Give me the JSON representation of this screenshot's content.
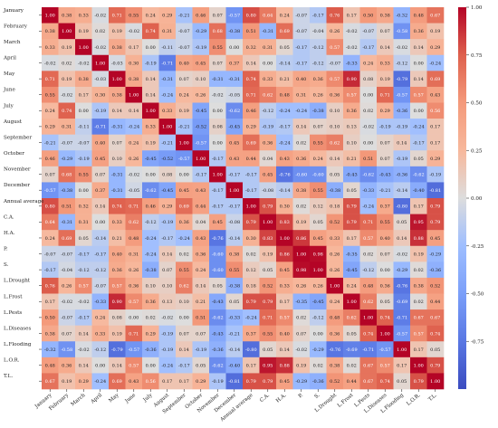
{
  "chart_data": {
    "type": "heatmap",
    "title": "",
    "xlabel": "",
    "ylabel": "",
    "labels": [
      "January",
      "February",
      "March",
      "April",
      "May",
      "June",
      "July",
      "August",
      "September",
      "October",
      "November",
      "December",
      "Annual average",
      "C.A.",
      "H.A.",
      "P.",
      "S.",
      "L.Drought",
      "L.Frost",
      "L.Pests",
      "L.Diseases",
      "L.Flooding",
      "L.O.R.",
      "T.L."
    ],
    "matrix": [
      [
        1.0,
        0.38,
        0.33,
        -0.02,
        0.71,
        0.55,
        0.24,
        0.29,
        -0.21,
        0.46,
        0.07,
        -0.57,
        0.8,
        0.64,
        0.24,
        -0.07,
        -0.17,
        0.76,
        0.17,
        0.5,
        0.38,
        -0.32,
        0.48,
        0.67
      ],
      [
        0.38,
        1.0,
        0.19,
        0.02,
        0.19,
        -0.02,
        0.74,
        0.31,
        -0.07,
        -0.29,
        0.68,
        -0.38,
        0.51,
        -0.31,
        0.69,
        -0.07,
        -0.04,
        0.26,
        -0.02,
        -0.07,
        0.07,
        -0.58,
        0.36,
        0.19
      ],
      [
        0.33,
        0.19,
        1.0,
        -0.02,
        0.38,
        0.17,
        0.0,
        -0.11,
        -0.07,
        -0.19,
        0.55,
        0.0,
        0.32,
        0.31,
        0.05,
        -0.17,
        -0.12,
        0.57,
        -0.02,
        -0.17,
        0.14,
        -0.02,
        0.14,
        0.29
      ],
      [
        -0.02,
        0.02,
        -0.02,
        1.0,
        -0.03,
        0.3,
        -0.19,
        -0.71,
        0.4,
        0.45,
        0.07,
        0.37,
        0.14,
        0.0,
        -0.14,
        -0.17,
        -0.12,
        -0.07,
        -0.33,
        0.24,
        0.33,
        -0.12,
        0.0,
        -0.24
      ],
      [
        0.71,
        0.19,
        0.38,
        -0.03,
        1.0,
        0.38,
        0.14,
        -0.31,
        0.07,
        0.1,
        -0.31,
        -0.31,
        0.74,
        0.33,
        0.21,
        0.4,
        0.36,
        0.57,
        0.9,
        0.08,
        0.19,
        -0.79,
        0.14,
        0.69
      ],
      [
        0.55,
        -0.02,
        0.17,
        0.3,
        0.38,
        1.0,
        0.14,
        -0.24,
        0.24,
        0.26,
        -0.02,
        -0.05,
        0.71,
        0.62,
        0.48,
        0.31,
        0.26,
        0.36,
        0.57,
        0.0,
        0.71,
        -0.57,
        0.57,
        0.43
      ],
      [
        0.24,
        0.74,
        0.0,
        -0.19,
        0.14,
        0.14,
        1.0,
        0.33,
        0.19,
        -0.45,
        0.0,
        -0.62,
        0.46,
        -0.12,
        -0.24,
        -0.24,
        -0.38,
        0.1,
        0.36,
        0.02,
        0.29,
        -0.36,
        0.0,
        0.56
      ],
      [
        0.29,
        0.31,
        -0.11,
        -0.71,
        -0.31,
        -0.24,
        0.33,
        1.0,
        -0.21,
        -0.52,
        0.08,
        -0.45,
        0.29,
        -0.19,
        -0.17,
        0.14,
        0.07,
        0.1,
        0.13,
        -0.02,
        -0.19,
        -0.19,
        -0.24,
        0.17
      ],
      [
        -0.21,
        -0.07,
        -0.07,
        0.4,
        0.07,
        0.24,
        0.19,
        -0.21,
        1.0,
        -0.57,
        0.0,
        0.45,
        0.69,
        0.36,
        -0.24,
        0.02,
        0.55,
        0.62,
        0.1,
        -0.0,
        0.07,
        0.14,
        -0.17,
        0.17
      ],
      [
        0.46,
        -0.29,
        -0.19,
        0.45,
        0.1,
        0.26,
        -0.45,
        -0.52,
        -0.57,
        1.0,
        -0.17,
        0.43,
        0.44,
        0.04,
        0.43,
        0.36,
        0.24,
        0.14,
        0.21,
        0.51,
        0.07,
        -0.19,
        0.05,
        0.29
      ],
      [
        0.07,
        0.68,
        0.55,
        0.07,
        -0.31,
        -0.02,
        0.0,
        0.08,
        0.0,
        -0.17,
        1.0,
        -0.17,
        -0.17,
        0.45,
        -0.76,
        -0.6,
        -0.6,
        0.05,
        -0.43,
        -0.62,
        -0.43,
        -0.36,
        -0.62,
        -0.19
      ],
      [
        -0.57,
        -0.38,
        0.0,
        0.37,
        -0.31,
        -0.05,
        -0.62,
        -0.45,
        0.45,
        0.43,
        -0.17,
        1.0,
        -0.17,
        -0.08,
        -0.14,
        0.38,
        0.55,
        -0.38,
        0.05,
        -0.33,
        -0.21,
        -0.14,
        -0.4,
        -0.81
      ],
      [
        0.8,
        0.51,
        0.32,
        0.14,
        0.74,
        0.71,
        0.46,
        0.29,
        0.69,
        0.44,
        -0.17,
        -0.17,
        1.0,
        0.79,
        0.3,
        0.02,
        0.12,
        0.18,
        0.79,
        -0.24,
        0.37,
        -0.8,
        0.17,
        0.79
      ],
      [
        0.64,
        -0.31,
        0.31,
        0.0,
        0.33,
        0.62,
        -0.12,
        -0.19,
        0.36,
        0.04,
        0.45,
        -0.08,
        0.79,
        1.0,
        0.83,
        0.19,
        0.05,
        0.52,
        0.79,
        0.71,
        0.55,
        0.05,
        0.95,
        0.79
      ],
      [
        0.24,
        0.69,
        0.05,
        -0.14,
        0.21,
        0.48,
        -0.24,
        -0.17,
        -0.24,
        0.43,
        -0.76,
        -0.14,
        0.3,
        0.83,
        1.0,
        0.86,
        0.45,
        0.33,
        0.17,
        0.57,
        0.4,
        0.14,
        0.88,
        0.45
      ],
      [
        -0.07,
        -0.07,
        -0.17,
        -0.17,
        0.4,
        0.31,
        -0.24,
        0.14,
        0.02,
        0.36,
        -0.6,
        0.38,
        0.02,
        0.19,
        0.86,
        1.0,
        0.98,
        0.26,
        -0.35,
        0.02,
        0.07,
        -0.02,
        0.19,
        -0.29
      ],
      [
        -0.17,
        -0.04,
        -0.12,
        -0.12,
        0.36,
        0.26,
        -0.38,
        0.07,
        0.55,
        0.24,
        -0.6,
        0.55,
        0.12,
        0.05,
        0.45,
        0.98,
        1.0,
        0.26,
        -0.45,
        -0.12,
        0.0,
        -0.29,
        0.02,
        -0.36
      ],
      [
        0.76,
        0.26,
        0.57,
        -0.07,
        0.57,
        0.36,
        0.1,
        0.1,
        0.62,
        0.14,
        0.05,
        -0.38,
        0.18,
        0.52,
        0.33,
        0.26,
        0.26,
        1.0,
        0.24,
        0.48,
        0.36,
        -0.76,
        0.38,
        0.52
      ],
      [
        0.17,
        -0.02,
        -0.02,
        -0.33,
        0.9,
        0.57,
        0.36,
        0.13,
        0.1,
        0.21,
        -0.43,
        0.05,
        0.79,
        0.79,
        0.17,
        -0.35,
        -0.45,
        0.24,
        1.0,
        0.62,
        0.05,
        -0.69,
        0.02,
        0.44
      ],
      [
        0.5,
        -0.07,
        -0.17,
        0.24,
        0.08,
        0.0,
        0.02,
        -0.02,
        -0.0,
        0.51,
        -0.62,
        -0.33,
        -0.24,
        0.71,
        0.57,
        0.02,
        -0.12,
        0.48,
        0.62,
        1.0,
        0.74,
        -0.71,
        0.67,
        0.67
      ],
      [
        0.38,
        0.07,
        0.14,
        0.33,
        0.19,
        0.71,
        0.29,
        -0.19,
        0.07,
        0.07,
        -0.43,
        -0.21,
        0.37,
        0.55,
        0.4,
        0.07,
        0.0,
        0.36,
        0.05,
        0.74,
        1.0,
        -0.57,
        0.57,
        0.74
      ],
      [
        -0.32,
        -0.58,
        -0.02,
        -0.12,
        -0.79,
        -0.57,
        -0.36,
        -0.19,
        0.14,
        -0.19,
        -0.36,
        -0.14,
        -0.8,
        0.05,
        0.14,
        -0.02,
        -0.29,
        -0.76,
        -0.69,
        -0.71,
        -0.57,
        1.0,
        0.17,
        0.05
      ],
      [
        0.48,
        0.36,
        0.14,
        0.0,
        0.14,
        0.57,
        0.0,
        -0.24,
        -0.17,
        0.05,
        -0.62,
        -0.4,
        0.17,
        0.95,
        0.88,
        0.19,
        0.02,
        0.38,
        0.02,
        0.67,
        0.57,
        0.17,
        1.0,
        0.79
      ],
      [
        0.67,
        0.19,
        0.29,
        -0.24,
        0.69,
        0.43,
        0.56,
        0.17,
        0.17,
        0.29,
        -0.19,
        -0.81,
        0.79,
        0.79,
        0.45,
        -0.29,
        -0.36,
        0.52,
        0.44,
        0.67,
        0.74,
        0.05,
        0.79,
        1.0
      ]
    ],
    "colorbar": {
      "min": -1.0,
      "max": 1.0,
      "ticks": [
        1.0,
        0.75,
        0.5,
        0.25,
        0.0,
        -0.25,
        -0.5,
        -0.75
      ],
      "tick_labels": [
        "1.00",
        "0.75",
        "0.50",
        "0.25",
        "0.00",
        "-0.25",
        "-0.50",
        "-0.75"
      ],
      "colormap": "coolwarm",
      "color_low": "#3b4cc0",
      "color_mid": "#dddddd",
      "color_high": "#b40426"
    },
    "grid": false,
    "legend": "right"
  }
}
